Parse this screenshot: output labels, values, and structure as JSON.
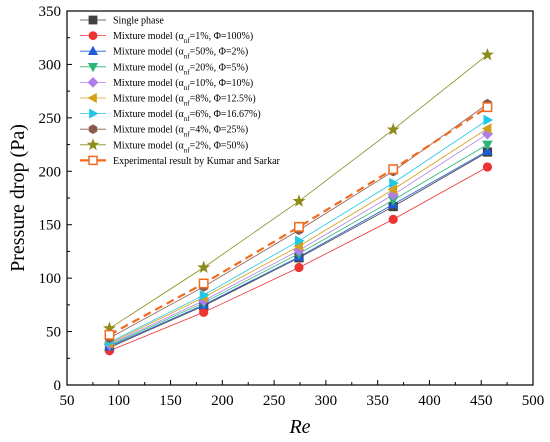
{
  "chart_data": {
    "type": "line",
    "xlabel": "Re",
    "ylabel": "Pressure drop (Pa)",
    "xlim": [
      50,
      500
    ],
    "ylim": [
      0,
      350
    ],
    "xticks": [
      "50",
      "100",
      "150",
      "200",
      "250",
      "300",
      "350",
      "400",
      "450",
      "500"
    ],
    "yticks": [
      "0",
      "50",
      "100",
      "150",
      "200",
      "250",
      "300",
      "350"
    ],
    "grid": false,
    "legend_position": "top-left",
    "x": [
      91,
      182,
      274,
      365,
      456
    ],
    "series": [
      {
        "name": "Single phase",
        "marker": "square",
        "color": "#404040",
        "dashed": false,
        "values": [
          35,
          74,
          119,
          167,
          218
        ]
      },
      {
        "name": "Mixture model (α_nf=1%, Φ=100%)",
        "name_parts": [
          "Mixture model (α",
          "nf",
          "=1%, Φ=100%)"
        ],
        "marker": "circle",
        "color": "#ee3333",
        "dashed": false,
        "values": [
          32,
          68,
          110,
          155,
          204
        ]
      },
      {
        "name": "Mixture model (α_nf=50%, Φ=2%)",
        "name_parts": [
          "Mixture model (α",
          "nf",
          "=50%, Φ=2%)"
        ],
        "marker": "triangle-up",
        "color": "#1f5bd6",
        "dashed": false,
        "values": [
          36,
          75,
          120,
          169,
          219
        ]
      },
      {
        "name": "Mixture model (α_nf=20%, Φ=5%)",
        "name_parts": [
          "Mixture model (α",
          "nf",
          "=20%, Φ=5%)"
        ],
        "marker": "triangle-down",
        "color": "#2bb673",
        "dashed": false,
        "values": [
          37,
          77,
          123,
          173,
          225
        ]
      },
      {
        "name": "Mixture model (α_nf=10%, Φ=10%)",
        "name_parts": [
          "Mixture model (α",
          "nf",
          "=10%, Φ=10%)"
        ],
        "marker": "diamond",
        "color": "#b07ee8",
        "dashed": false,
        "values": [
          38,
          79,
          126,
          178,
          235
        ]
      },
      {
        "name": "Mixture model (α_nf=8%, Φ=12.5%)",
        "name_parts": [
          "Mixture model (α",
          "nf",
          "=8%, Φ=12.5%)"
        ],
        "marker": "triangle-left",
        "color": "#d4a017",
        "dashed": false,
        "values": [
          39,
          82,
          130,
          183,
          240
        ]
      },
      {
        "name": "Mixture model (α_nf=6%, Φ=16.67%)",
        "name_parts": [
          "Mixture model (α",
          "nf",
          "=6%, Φ=16.67%)"
        ],
        "marker": "triangle-right",
        "color": "#1ec8e6",
        "dashed": false,
        "values": [
          40,
          84,
          135,
          189,
          248
        ]
      },
      {
        "name": "Mixture model (α_nf=4%, Φ=25%)",
        "name_parts": [
          "Mixture model (α",
          "nf",
          "=4%, Φ=25%)"
        ],
        "marker": "hexagon",
        "color": "#8b5a4f",
        "dashed": false,
        "values": [
          44,
          92,
          145,
          200,
          263
        ]
      },
      {
        "name": "Mixture model (α_nf=2%, Φ=50%)",
        "name_parts": [
          "Mixture model (α",
          "nf",
          "=2%, Φ=50%)"
        ],
        "marker": "star",
        "color": "#8c8c1a",
        "dashed": false,
        "values": [
          53,
          110,
          172,
          239,
          309
        ]
      },
      {
        "name": "Experimental result by Kumar and Sarkar",
        "marker": "open-square",
        "color": "#f26b1d",
        "dashed": true,
        "values": [
          47,
          95,
          148,
          202,
          260
        ]
      }
    ]
  }
}
